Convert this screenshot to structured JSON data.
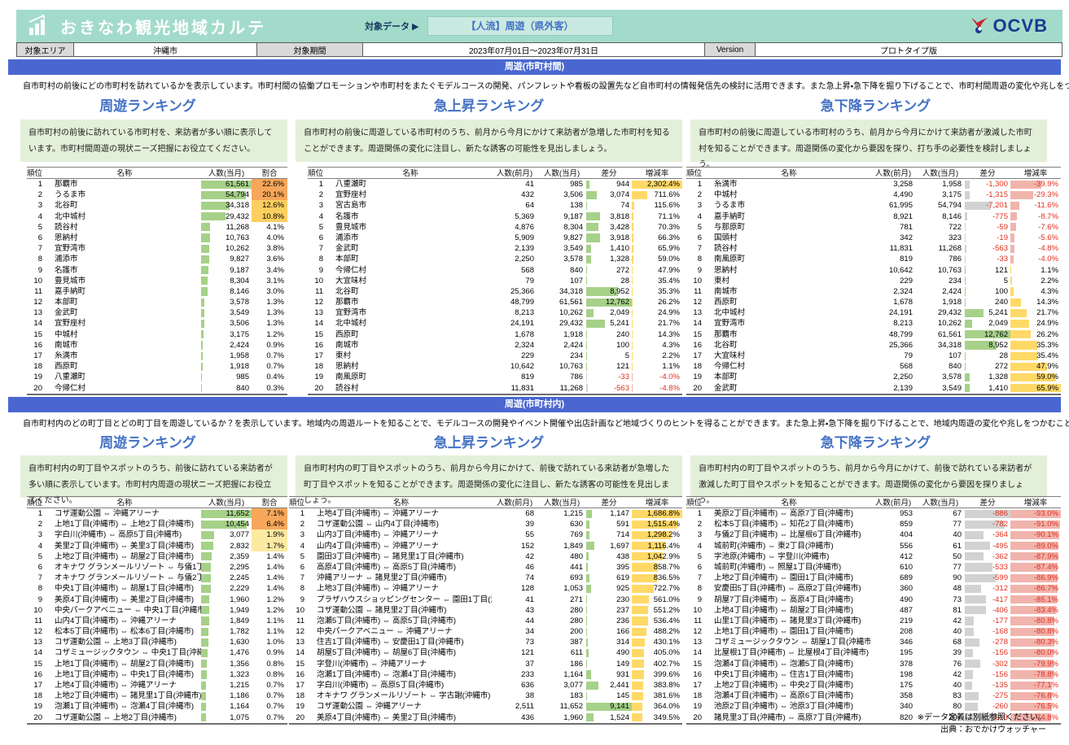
{
  "header": {
    "app_title": "おきなわ観光地域カルテ",
    "target_data_label": "対象データ ▶",
    "target_data_value": "【人流】周遊（県外客）",
    "logo_text": "OCVB",
    "meta": [
      {
        "label": "対象エリア",
        "value": "沖縄市"
      },
      {
        "label": "対象期間",
        "value": "2023年07月01日～2023年07月31日"
      },
      {
        "label": "Version",
        "value": "プロトタイプ版"
      }
    ]
  },
  "footer": {
    "note": "※データ定義は別紙参照ください。",
    "source": "出典：おでかけウォッチャー"
  },
  "colors": {
    "header_teal": "#a3dbcb",
    "section_blue": "#4a67d1",
    "heading_blue": "#4472c4",
    "note_green": "#e3f0d9",
    "bar_green": "#a6d189",
    "bar_yellow": "#ffd966",
    "bar_gray": "#d2d2d2",
    "bar_pink": "#f0b4ad",
    "negative_red": "#e0301e",
    "share_high": "#f6a75b",
    "share_mid": "#fbcf60",
    "share_low": "#fce9a2"
  },
  "sections": [
    {
      "title": "周遊(市町村間)",
      "description": "自市町村の前後にどの市町村を訪れているかを表示しています。市町村間の協働プロモーションや市町村をまたぐモデルコースの開発、パンフレットや看板の設置先など自市町村の情報発信先の検討に活用できます。また急上昇・急下降を掘り下げることで、市町村間周遊の変化や兆しをつかむこともできます。",
      "tables": [
        {
          "heading": "周遊ランキング",
          "note": "自市町村の前後に訪れている市町村を、来訪者が多い順に表示しています。市町村間周遊の現状ニーズ把握にお役立てください。",
          "type": "share",
          "columns": [
            "順位",
            "名称",
            "人数(当月)",
            "割合"
          ],
          "rows": [
            [
              "那覇市",
              61561,
              22.6
            ],
            [
              "うるま市",
              54794,
              20.1
            ],
            [
              "北谷町",
              34318,
              12.6
            ],
            [
              "北中城村",
              29432,
              10.8
            ],
            [
              "読谷村",
              11268,
              4.1
            ],
            [
              "恩納村",
              10763,
              4.0
            ],
            [
              "宜野湾市",
              10262,
              3.8
            ],
            [
              "浦添市",
              9827,
              3.6
            ],
            [
              "名護市",
              9187,
              3.4
            ],
            [
              "豊見城市",
              8304,
              3.1
            ],
            [
              "嘉手納町",
              8146,
              3.0
            ],
            [
              "本部町",
              3578,
              1.3
            ],
            [
              "金武町",
              3549,
              1.3
            ],
            [
              "宜野座村",
              3506,
              1.3
            ],
            [
              "中城村",
              3175,
              1.2
            ],
            [
              "南城市",
              2424,
              0.9
            ],
            [
              "糸満市",
              1958,
              0.7
            ],
            [
              "西原町",
              1918,
              0.7
            ],
            [
              "八重瀬町",
              985,
              0.4
            ],
            [
              "今帰仁村",
              840,
              0.3
            ]
          ]
        },
        {
          "heading": "急上昇ランキング",
          "note": "自市町村の前後に周遊している市町村のうち、前月から今月にかけて来訪者が急増した市町村を知ることができます。周遊関係の変化に注目し、新たな誘客の可能性を見出しましょう。",
          "type": "delta",
          "columns": [
            "順位",
            "名称",
            "人数(前月)",
            "人数(当月)",
            "差分",
            "増減率"
          ],
          "rows": [
            [
              "八重瀬町",
              41,
              985,
              944,
              2302.4
            ],
            [
              "宜野座村",
              432,
              3506,
              3074,
              711.6
            ],
            [
              "宮古島市",
              64,
              138,
              74,
              115.6
            ],
            [
              "名護市",
              5369,
              9187,
              3818,
              71.1
            ],
            [
              "豊見城市",
              4876,
              8304,
              3428,
              70.3
            ],
            [
              "浦添市",
              5909,
              9827,
              3918,
              66.3
            ],
            [
              "金武町",
              2139,
              3549,
              1410,
              65.9
            ],
            [
              "本部町",
              2250,
              3578,
              1328,
              59.0
            ],
            [
              "今帰仁村",
              568,
              840,
              272,
              47.9
            ],
            [
              "大宜味村",
              79,
              107,
              28,
              35.4
            ],
            [
              "北谷町",
              25366,
              34318,
              8952,
              35.3
            ],
            [
              "那覇市",
              48799,
              61561,
              12762,
              26.2
            ],
            [
              "宜野湾市",
              8213,
              10262,
              2049,
              24.9
            ],
            [
              "北中城村",
              24191,
              29432,
              5241,
              21.7
            ],
            [
              "西原町",
              1678,
              1918,
              240,
              14.3
            ],
            [
              "南城市",
              2324,
              2424,
              100,
              4.3
            ],
            [
              "東村",
              229,
              234,
              5,
              2.2
            ],
            [
              "恩納村",
              10642,
              10763,
              121,
              1.1
            ],
            [
              "南風原町",
              819,
              786,
              -33,
              -4.0
            ],
            [
              "読谷村",
              11831,
              11268,
              -563,
              -4.8
            ]
          ]
        },
        {
          "heading": "急下降ランキング",
          "note": "自市町村の前後に周遊している市町村のうち、前月から今月にかけて来訪者が激減した市町村を知ることができます。周遊関係の変化から要因を探り、打ち手の必要性を検討しましょう。",
          "type": "delta",
          "columns": [
            "順位",
            "名称",
            "人数(前月)",
            "人数(当月)",
            "差分",
            "増減率"
          ],
          "rows": [
            [
              "糸満市",
              3258,
              1958,
              -1300,
              -39.9
            ],
            [
              "中城村",
              4490,
              3175,
              -1315,
              -29.3
            ],
            [
              "うるま市",
              61995,
              54794,
              -7201,
              -11.6
            ],
            [
              "嘉手納町",
              8921,
              8146,
              -775,
              -8.7
            ],
            [
              "与那原町",
              781,
              722,
              -59,
              -7.6
            ],
            [
              "国頭村",
              342,
              323,
              -19,
              -5.6
            ],
            [
              "読谷村",
              11831,
              11268,
              -563,
              -4.8
            ],
            [
              "南風原町",
              819,
              786,
              -33,
              -4.0
            ],
            [
              "恩納村",
              10642,
              10763,
              121,
              1.1
            ],
            [
              "東村",
              229,
              234,
              5,
              2.2
            ],
            [
              "南城市",
              2324,
              2424,
              100,
              4.3
            ],
            [
              "西原町",
              1678,
              1918,
              240,
              14.3
            ],
            [
              "北中城村",
              24191,
              29432,
              5241,
              21.7
            ],
            [
              "宜野湾市",
              8213,
              10262,
              2049,
              24.9
            ],
            [
              "那覇市",
              48799,
              61561,
              12762,
              26.2
            ],
            [
              "北谷町",
              25366,
              34318,
              8952,
              35.3
            ],
            [
              "大宜味村",
              79,
              107,
              28,
              35.4
            ],
            [
              "今帰仁村",
              568,
              840,
              272,
              47.9
            ],
            [
              "本部町",
              2250,
              3578,
              1328,
              59.0
            ],
            [
              "金武町",
              2139,
              3549,
              1410,
              65.9
            ]
          ]
        }
      ]
    },
    {
      "title": "周遊(市町村内)",
      "description": "自市町村内のどの町丁目とどの町丁目を周遊しているか？を表示しています。地域内の周遊ルートを知ることで、モデルコースの開発やイベント開催や出店計画など地域づくりのヒントを得ることができます。また急上昇・急下降を掘り下げることで、地域内周遊の変化や兆しをつかむこともできます。",
      "tables": [
        {
          "heading": "周遊ランキング",
          "note": "自市町村内の町丁目やスポットのうち、前後に訪れている来訪者が多い順に表示しています。市町村内周遊の現状ニーズ把握にお役立てください。",
          "type": "share",
          "columns": [
            "順位",
            "名称",
            "人数(当月)",
            "割合"
          ],
          "rows": [
            [
              "コザ運動公園 ⇔ 沖縄アリーナ",
              11652,
              7.1
            ],
            [
              "上地1丁目(沖縄市) ⇔ 上地2丁目(沖縄市)",
              10454,
              6.4
            ],
            [
              "字白川(沖縄市) ⇔ 高原5丁目(沖縄市)",
              3077,
              1.9
            ],
            [
              "美里2丁目(沖縄市) ⇔ 美里3丁目(沖縄市)",
              2832,
              1.7
            ],
            [
              "上地2丁目(沖縄市) ⇔ 胡屋2丁目(沖縄市)",
              2359,
              1.4
            ],
            [
              "オキナワ グランメールリゾート ⇔ 与儀1丁目(沖縄市)",
              2295,
              1.4
            ],
            [
              "オキナワ グランメールリゾート ⇔ 与儀2丁目(沖縄市)",
              2245,
              1.4
            ],
            [
              "中央1丁目(沖縄市) ⇔ 胡屋1丁目(沖縄市)",
              2229,
              1.4
            ],
            [
              "美原4丁目(沖縄市) ⇔ 美里2丁目(沖縄市)",
              1960,
              1.2
            ],
            [
              "中央パークアベニュー ⇔ 中央1丁目(沖縄市)",
              1949,
              1.2
            ],
            [
              "山内4丁目(沖縄市) ⇔ 沖縄アリーナ",
              1849,
              1.1
            ],
            [
              "松本5丁目(沖縄市) ⇔ 松本6丁目(沖縄市)",
              1782,
              1.1
            ],
            [
              "コザ運動公園 ⇔ 上地3丁目(沖縄市)",
              1630,
              1.0
            ],
            [
              "コザミュージックタウン ⇔ 中央1丁目(沖縄市)",
              1476,
              0.9
            ],
            [
              "上地1丁目(沖縄市) ⇔ 胡屋2丁目(沖縄市)",
              1356,
              0.8
            ],
            [
              "上地1丁目(沖縄市) ⇔ 中央1丁目(沖縄市)",
              1323,
              0.8
            ],
            [
              "上地4丁目(沖縄市) ⇔ 沖縄アリーナ",
              1215,
              0.7
            ],
            [
              "上地2丁目(沖縄市) ⇔ 諸見里1丁目(沖縄市)",
              1186,
              0.7
            ],
            [
              "泡瀬1丁目(沖縄市) ⇔ 泡瀬4丁目(沖縄市)",
              1164,
              0.7
            ],
            [
              "コザ運動公園 ⇔ 上地2丁目(沖縄市)",
              1075,
              0.7
            ]
          ]
        },
        {
          "heading": "急上昇ランキング",
          "note": "自市町村内の町丁目やスポットのうち、前月から今月にかけて、前後で訪れている来訪者が急増した町丁目やスポットを知ることができます。周遊関係の変化に注目し、新たな誘客の可能性を見出しましょう。",
          "type": "delta",
          "columns": [
            "順位",
            "名称",
            "人数(前月)",
            "人数(当月)",
            "差分",
            "増減率"
          ],
          "rows": [
            [
              "上地4丁目(沖縄市) ⇔ 沖縄アリーナ",
              68,
              1215,
              1147,
              1686.8
            ],
            [
              "コザ運動公園 ⇔ 山内4丁目(沖縄市)",
              39,
              630,
              591,
              1515.4
            ],
            [
              "山内3丁目(沖縄市) ⇔ 沖縄アリーナ",
              55,
              769,
              714,
              1298.2
            ],
            [
              "山内4丁目(沖縄市) ⇔ 沖縄アリーナ",
              152,
              1849,
              1697,
              1116.4
            ],
            [
              "園田3丁目(沖縄市) ⇔ 諸見里1丁目(沖縄市)",
              42,
              480,
              438,
              1042.9
            ],
            [
              "高原4丁目(沖縄市) ⇔ 高原5丁目(沖縄市)",
              46,
              441,
              395,
              858.7
            ],
            [
              "沖縄アリーナ ⇔ 諸見里2丁目(沖縄市)",
              74,
              693,
              619,
              836.5
            ],
            [
              "上地3丁目(沖縄市) ⇔ 沖縄アリーナ",
              128,
              1053,
              925,
              722.7
            ],
            [
              "プラザハウスショッピングセンター ⇔ 園田1丁目(沖縄市)",
              41,
              271,
              230,
              561.0
            ],
            [
              "コザ運動公園 ⇔ 諸見里2丁目(沖縄市)",
              43,
              280,
              237,
              551.2
            ],
            [
              "泡瀬5丁目(沖縄市) ⇔ 高原5丁目(沖縄市)",
              44,
              280,
              236,
              536.4
            ],
            [
              "中央パークアベニュー ⇔ 沖縄アリーナ",
              34,
              200,
              166,
              488.2
            ],
            [
              "住吉1丁目(沖縄市) ⇔ 安慶田1丁目(沖縄市)",
              73,
              387,
              314,
              430.1
            ],
            [
              "胡屋5丁目(沖縄市) ⇔ 胡屋6丁目(沖縄市)",
              121,
              611,
              490,
              405.0
            ],
            [
              "字登川(沖縄市) ⇔ 沖縄アリーナ",
              37,
              186,
              149,
              402.7
            ],
            [
              "泡瀬1丁目(沖縄市) ⇔ 泡瀬4丁目(沖縄市)",
              233,
              1164,
              931,
              399.6
            ],
            [
              "字白川(沖縄市) ⇔ 高原5丁目(沖縄市)",
              636,
              3077,
              2441,
              383.8
            ],
            [
              "オキナワ グランメールリゾート ⇔ 字古謝(沖縄市)",
              38,
              183,
              145,
              381.6
            ],
            [
              "コザ運動公園 ⇔ 沖縄アリーナ",
              2511,
              11652,
              9141,
              364.0
            ],
            [
              "美原4丁目(沖縄市) ⇔ 美里2丁目(沖縄市)",
              436,
              1960,
              1524,
              349.5
            ]
          ]
        },
        {
          "heading": "急下降ランキング",
          "note": "自市町村内の町丁目やスポットのうち、前月から今月にかけて、前後で訪れている来訪者が激減した町丁目やスポットを知ることができます。周遊関係の変化から要因を探りましょう。",
          "type": "delta",
          "columns": [
            "順位",
            "名称",
            "人数(前月)",
            "人数(当月)",
            "差分",
            "増減率"
          ],
          "rows": [
            [
              "美原2丁目(沖縄市) ⇔ 高原7丁目(沖縄市)",
              953,
              67,
              -886,
              -93.0
            ],
            [
              "松本5丁目(沖縄市) ⇔ 知花2丁目(沖縄市)",
              859,
              77,
              -782,
              -91.0
            ],
            [
              "与儀2丁目(沖縄市) ⇔ 比屋根6丁目(沖縄市)",
              404,
              40,
              -364,
              -90.1
            ],
            [
              "城前町(沖縄市) ⇔ 東2丁目(沖縄市)",
              556,
              61,
              -495,
              -89.0
            ],
            [
              "字池原(沖縄市) ⇔ 字登川(沖縄市)",
              412,
              50,
              -362,
              -87.9
            ],
            [
              "城前町(沖縄市) ⇔ 照屋1丁目(沖縄市)",
              610,
              77,
              -533,
              -87.4
            ],
            [
              "上地2丁目(沖縄市) ⇔ 園田1丁目(沖縄市)",
              689,
              90,
              -599,
              -86.9
            ],
            [
              "安慶田5丁目(沖縄市) ⇔ 高原2丁目(沖縄市)",
              360,
              48,
              -312,
              -86.7
            ],
            [
              "胡屋7丁目(沖縄市) ⇔ 高原4丁目(沖縄市)",
              490,
              73,
              -417,
              -85.1
            ],
            [
              "上地4丁目(沖縄市) ⇔ 胡屋2丁目(沖縄市)",
              487,
              81,
              -406,
              -83.4
            ],
            [
              "山里1丁目(沖縄市) ⇔ 諸見里3丁目(沖縄市)",
              219,
              42,
              -177,
              -80.8
            ],
            [
              "上地1丁目(沖縄市) ⇔ 園田1丁目(沖縄市)",
              208,
              40,
              -168,
              -80.8
            ],
            [
              "コザミュージックタウン ⇔ 胡屋1丁目(沖縄市)",
              346,
              68,
              -278,
              -80.3
            ],
            [
              "比屋根1丁目(沖縄市) ⇔ 比屋根4丁目(沖縄市)",
              195,
              39,
              -156,
              -80.0
            ],
            [
              "泡瀬4丁目(沖縄市) ⇔ 泡瀬5丁目(沖縄市)",
              378,
              76,
              -302,
              -79.9
            ],
            [
              "中央1丁目(沖縄市) ⇔ 住吉1丁目(沖縄市)",
              198,
              42,
              -156,
              -78.8
            ],
            [
              "上地2丁目(沖縄市) ⇔ 中央2丁目(沖縄市)",
              175,
              40,
              -135,
              -77.1
            ],
            [
              "泡瀬4丁目(沖縄市) ⇔ 高原6丁目(沖縄市)",
              358,
              83,
              -275,
              -76.8
            ],
            [
              "池原2丁目(沖縄市) ⇔ 池原3丁目(沖縄市)",
              340,
              80,
              -260,
              -76.5
            ],
            [
              "諸見里3丁目(沖縄市) ⇔ 高原7丁目(沖縄市)",
              820,
              207,
              -613,
              -74.8
            ]
          ]
        }
      ]
    }
  ]
}
